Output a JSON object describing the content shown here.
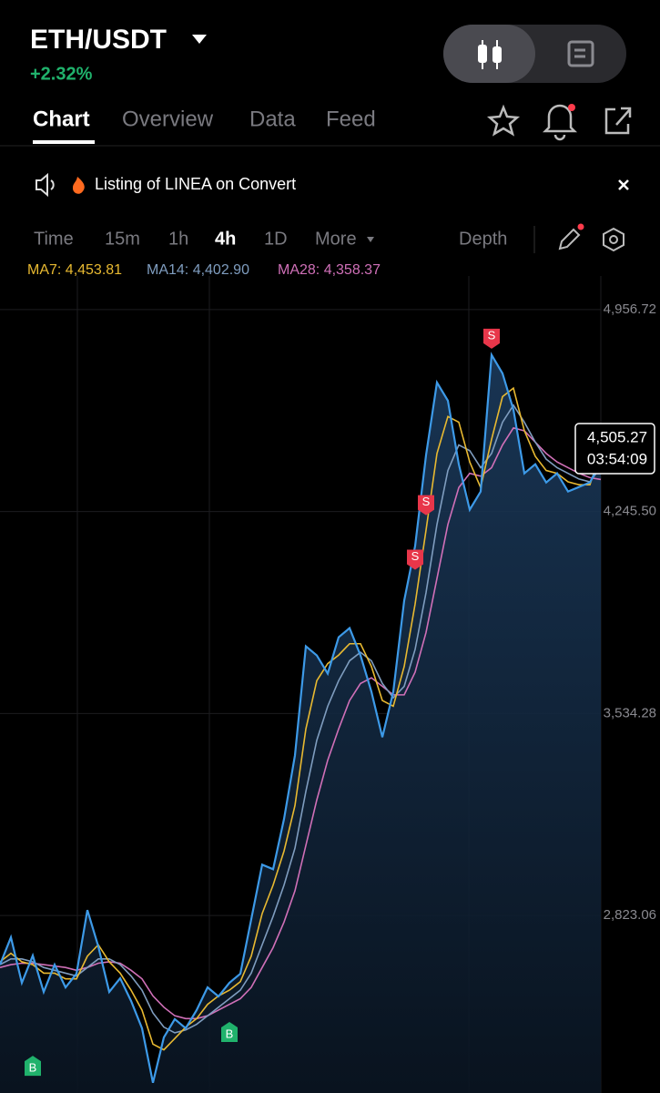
{
  "header": {
    "pair": "ETH/USDT",
    "change": "+2.32%"
  },
  "tabs": [
    "Chart",
    "Overview",
    "Data",
    "Feed"
  ],
  "notice": "Listing of LINEA on Convert",
  "timeframes": [
    "Time",
    "15m",
    "1h",
    "4h",
    "1D",
    "More"
  ],
  "depth": "Depth",
  "indicators": [
    "MA7: 4,453.81",
    "MA14: 4,402.90",
    "MA28: 4,358.37"
  ],
  "price_tag": {
    "price": "4,505.27",
    "countdown": "03:54:09"
  },
  "chart_data": {
    "type": "line",
    "grid": true,
    "ylim": [
      2198,
      5075
    ],
    "yticks": [
      {
        "value": 4956.72,
        "label": "4,956.72"
      },
      {
        "value": 4245.5,
        "label": "4,245.50"
      },
      {
        "value": 3534.28,
        "label": "3,534.28"
      },
      {
        "value": 2823.06,
        "label": "2,823.06"
      }
    ],
    "series": [
      {
        "color": "#3d9ae8",
        "values": [
          2650,
          2746,
          2586,
          2682,
          2554,
          2650,
          2570,
          2618,
          2842,
          2714,
          2554,
          2602,
          2522,
          2426,
          2234,
          2394,
          2458,
          2426,
          2490,
          2570,
          2538,
          2586,
          2618,
          2810,
          3002,
          2986,
          3163,
          3387,
          3771,
          3739,
          3675,
          3803,
          3835,
          3739,
          3611,
          3451,
          3611,
          3932,
          4124,
          4444,
          4700,
          4636,
          4412,
          4252,
          4316,
          4797,
          4732,
          4604,
          4380,
          4412,
          4348,
          4380,
          4316,
          4332,
          4348,
          4420
        ]
      },
      {
        "color": "#e8b931",
        "values": [
          2660,
          2690,
          2660,
          2650,
          2620,
          2620,
          2600,
          2600,
          2680,
          2720,
          2660,
          2620,
          2560,
          2490,
          2370,
          2350,
          2390,
          2430,
          2460,
          2510,
          2540,
          2560,
          2590,
          2680,
          2830,
          2930,
          3050,
          3210,
          3480,
          3650,
          3710,
          3740,
          3780,
          3780,
          3700,
          3580,
          3560,
          3700,
          3920,
          4180,
          4450,
          4580,
          4560,
          4420,
          4330,
          4500,
          4650,
          4680,
          4530,
          4440,
          4390,
          4380,
          4350,
          4340,
          4340,
          4453.81
        ]
      },
      {
        "color": "#7f9dbf",
        "values": [
          2650,
          2670,
          2670,
          2660,
          2640,
          2630,
          2620,
          2610,
          2640,
          2670,
          2670,
          2650,
          2610,
          2560,
          2480,
          2430,
          2410,
          2420,
          2440,
          2470,
          2500,
          2530,
          2560,
          2620,
          2720,
          2820,
          2930,
          3060,
          3260,
          3440,
          3560,
          3650,
          3720,
          3750,
          3720,
          3640,
          3590,
          3630,
          3760,
          3960,
          4200,
          4390,
          4480,
          4460,
          4400,
          4450,
          4560,
          4620,
          4560,
          4490,
          4430,
          4400,
          4380,
          4360,
          4350,
          4402.9
        ]
      },
      {
        "color": "#d070b8",
        "values": [
          2640,
          2650,
          2655,
          2655,
          2650,
          2645,
          2640,
          2630,
          2640,
          2655,
          2660,
          2655,
          2630,
          2600,
          2540,
          2500,
          2470,
          2460,
          2460,
          2470,
          2490,
          2510,
          2530,
          2570,
          2640,
          2710,
          2800,
          2910,
          3070,
          3230,
          3370,
          3480,
          3580,
          3640,
          3660,
          3630,
          3600,
          3600,
          3680,
          3820,
          4010,
          4200,
          4330,
          4380,
          4370,
          4400,
          4480,
          4540,
          4530,
          4490,
          4450,
          4420,
          4400,
          4380,
          4365,
          4358.37
        ]
      }
    ],
    "markers": [
      {
        "label": "B",
        "index": 3,
        "value": 2294
      },
      {
        "label": "B",
        "index": 21,
        "value": 2413
      },
      {
        "label": "S",
        "index": 38,
        "value": 4076
      },
      {
        "label": "S",
        "index": 39,
        "value": 4268
      },
      {
        "label": "S",
        "index": 45,
        "value": 4854
      }
    ]
  }
}
